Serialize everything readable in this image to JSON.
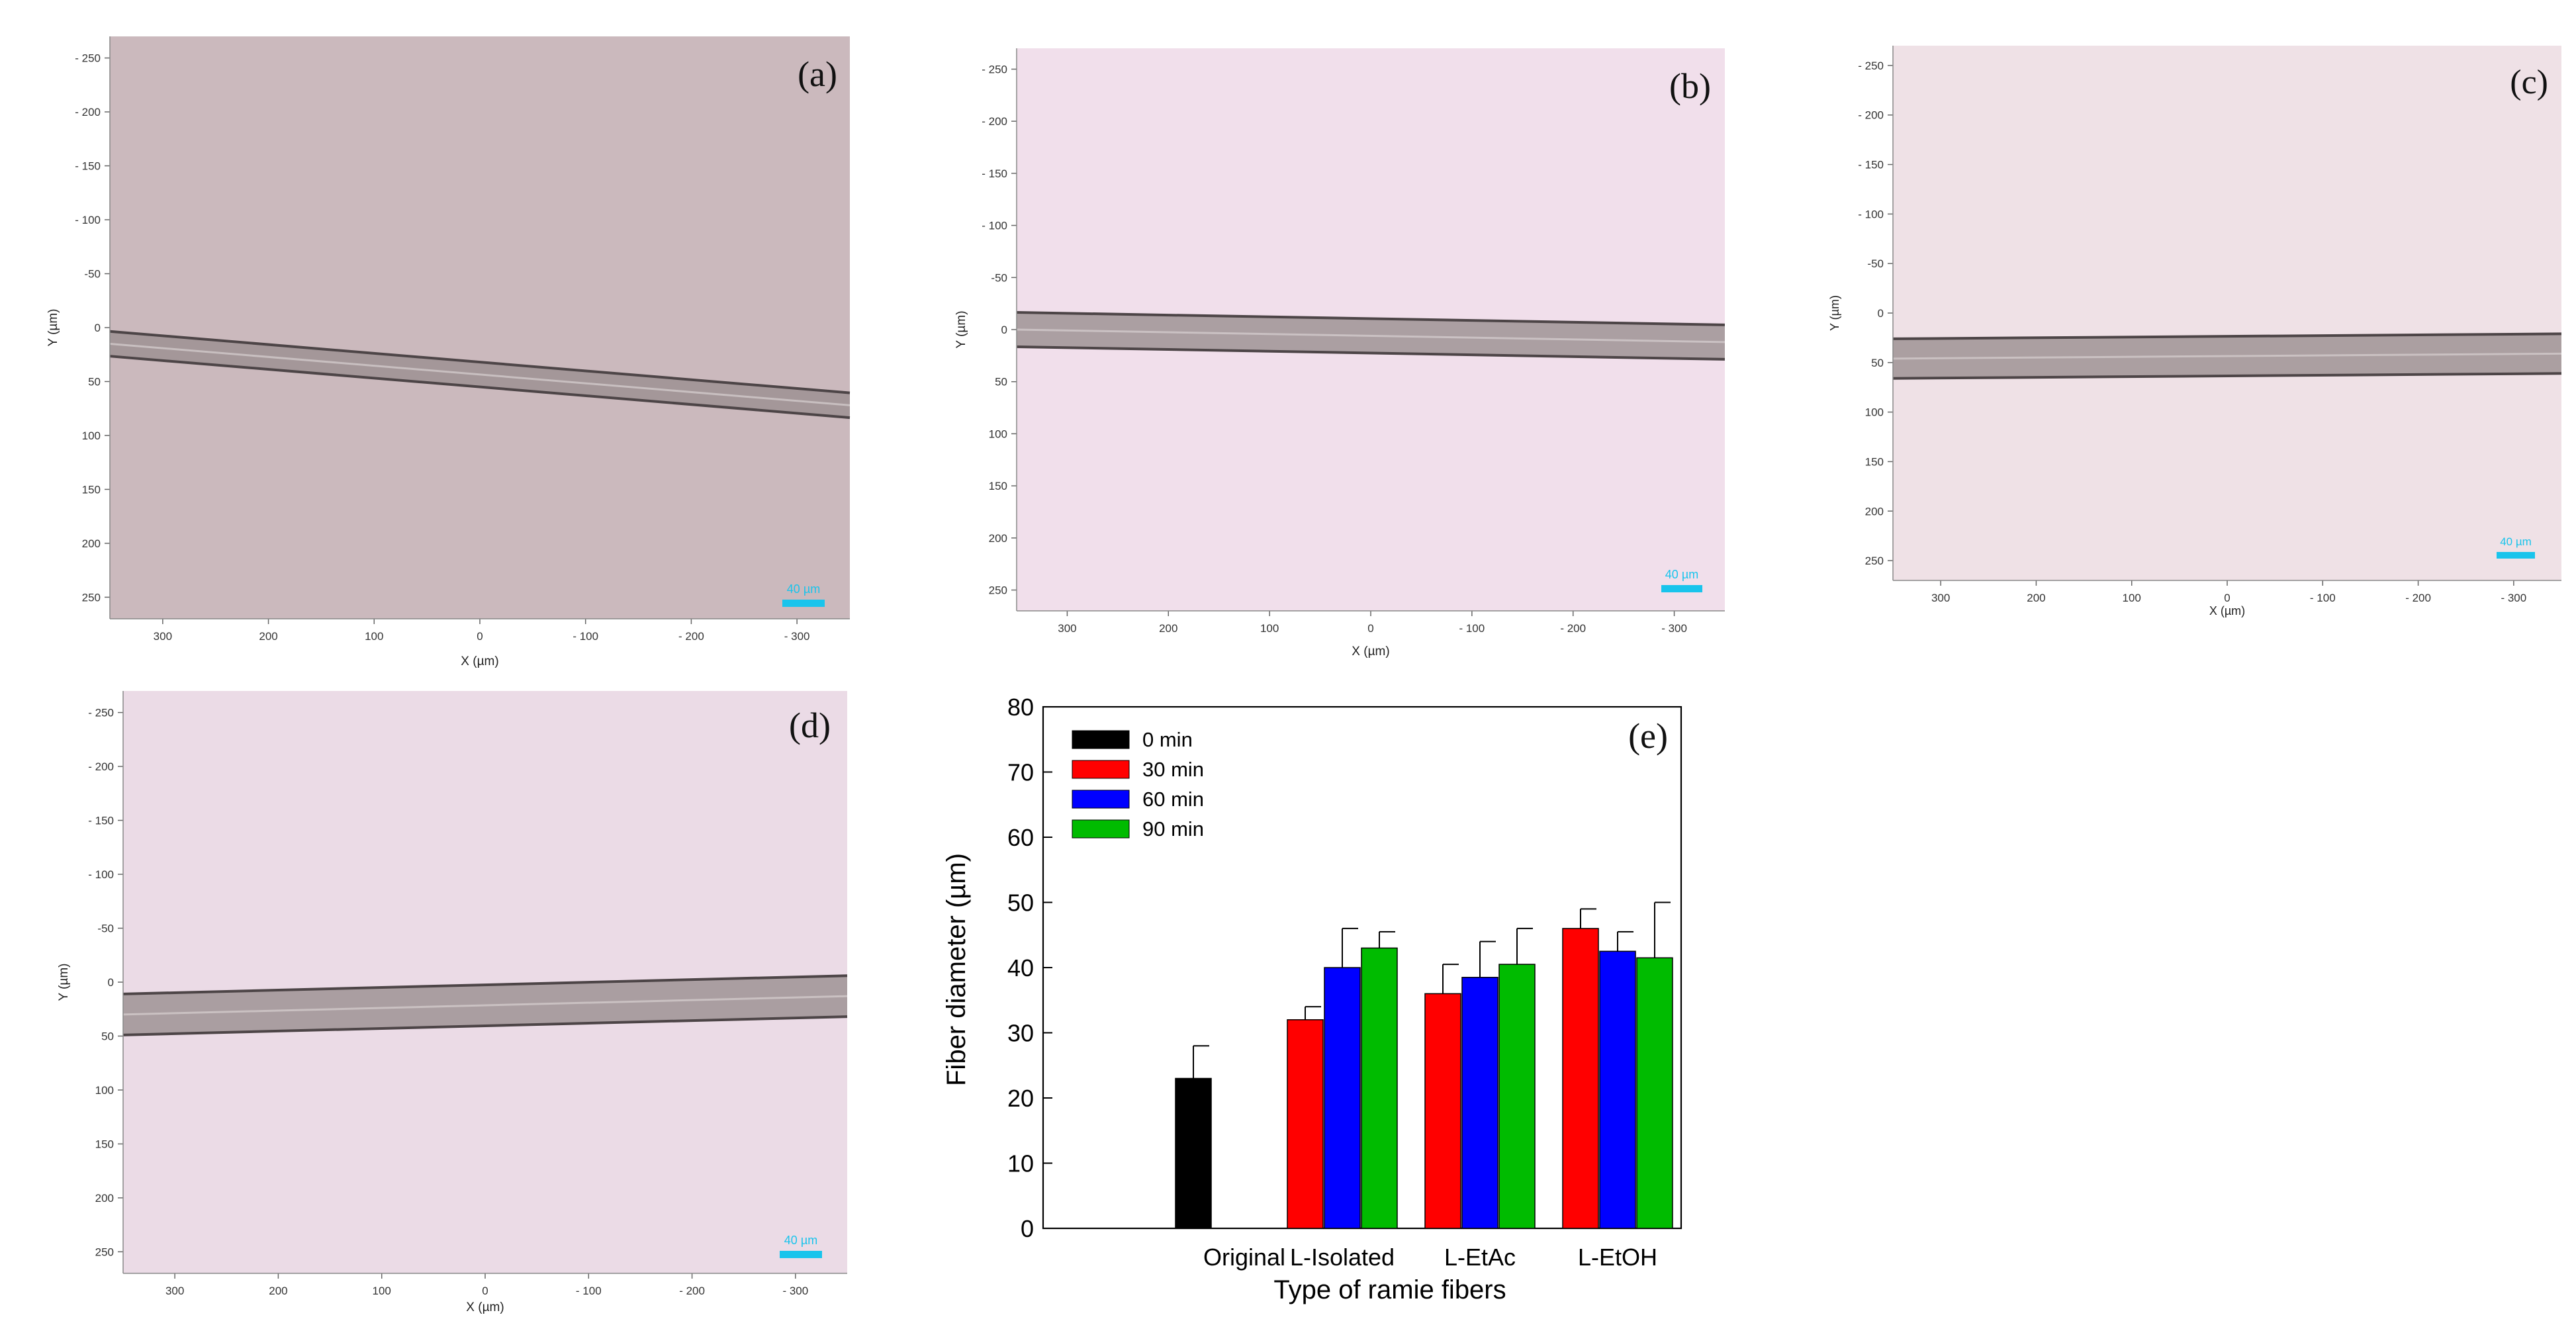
{
  "micrographs": [
    {
      "id": "a",
      "panel_label": "(a)",
      "fiber": {
        "y_left": 15,
        "y_right": 72,
        "thickness": 23
      },
      "x_ticks": [
        "300",
        "200",
        "100",
        "0",
        "- 100",
        "- 200",
        "- 300"
      ],
      "y_ticks": [
        "- 250",
        "- 200",
        "- 150",
        "- 100",
        "-50",
        "0",
        "50",
        "100",
        "150",
        "200",
        "250"
      ],
      "xlabel": "X (µm)",
      "ylabel": "Y (µm)",
      "scale_bar_label": "40 µm",
      "background": "#cbb9bd"
    },
    {
      "id": "b",
      "panel_label": "(b)",
      "fiber": {
        "y_left": 0,
        "y_right": 12,
        "thickness": 33
      },
      "x_ticks": [
        "300",
        "200",
        "100",
        "0",
        "- 100",
        "- 200",
        "- 300"
      ],
      "y_ticks": [
        "- 250",
        "- 200",
        "- 150",
        "- 100",
        "-50",
        "0",
        "50",
        "100",
        "150",
        "200",
        "250"
      ],
      "xlabel": "X (µm)",
      "ylabel": "Y (µm)",
      "scale_bar_label": "40 µm",
      "background": "#f1dfeb"
    },
    {
      "id": "c",
      "panel_label": "(c)",
      "fiber": {
        "y_left": 46,
        "y_right": 41,
        "thickness": 40
      },
      "x_ticks": [
        "300",
        "200",
        "100",
        "0",
        "- 100",
        "- 200",
        "- 300"
      ],
      "y_ticks": [
        "- 250",
        "- 200",
        "- 150",
        "- 100",
        "-50",
        "0",
        "50",
        "100",
        "150",
        "200",
        "250"
      ],
      "xlabel": "X (µm)",
      "ylabel": "Y (µm)",
      "scale_bar_label": "40 µm",
      "background": "#efe1e6"
    },
    {
      "id": "d",
      "panel_label": "(d)",
      "fiber": {
        "y_left": 30,
        "y_right": 13,
        "thickness": 38
      },
      "x_ticks": [
        "300",
        "200",
        "100",
        "0",
        "- 100",
        "- 200",
        "- 300"
      ],
      "y_ticks": [
        "- 250",
        "- 200",
        "- 150",
        "- 100",
        "-50",
        "0",
        "50",
        "100",
        "150",
        "200",
        "250"
      ],
      "xlabel": "X (µm)",
      "ylabel": "Y (µm)",
      "scale_bar_label": "40 µm",
      "background": "#ebdbe6"
    }
  ],
  "chart_data": {
    "type": "bar",
    "panel_label": "(e)",
    "categories": [
      "Original",
      "L-Isolated",
      "L-EtAc",
      "L-EtOH"
    ],
    "series": [
      {
        "name": "0 min",
        "color": "#000000",
        "values": [
          23,
          null,
          null,
          null
        ],
        "errors": [
          5,
          null,
          null,
          null
        ]
      },
      {
        "name": "30 min",
        "color": "#ff0000",
        "values": [
          null,
          32,
          36,
          46
        ],
        "errors": [
          null,
          2,
          4.5,
          3
        ]
      },
      {
        "name": "60 min",
        "color": "#0000ff",
        "values": [
          null,
          40,
          38.5,
          42.5
        ],
        "errors": [
          null,
          6,
          5.5,
          3
        ]
      },
      {
        "name": "90 min",
        "color": "#00bb00",
        "values": [
          null,
          43,
          40.5,
          41.5
        ],
        "errors": [
          null,
          2.5,
          5.5,
          8.5
        ]
      }
    ],
    "xlabel": "Type of ramie fibers",
    "ylabel": "Fiber diameter (µm)",
    "ylim": [
      0,
      80
    ],
    "yticks": [
      0,
      10,
      20,
      30,
      40,
      50,
      60,
      70,
      80
    ],
    "legend_position": "top-left",
    "grid": false
  }
}
